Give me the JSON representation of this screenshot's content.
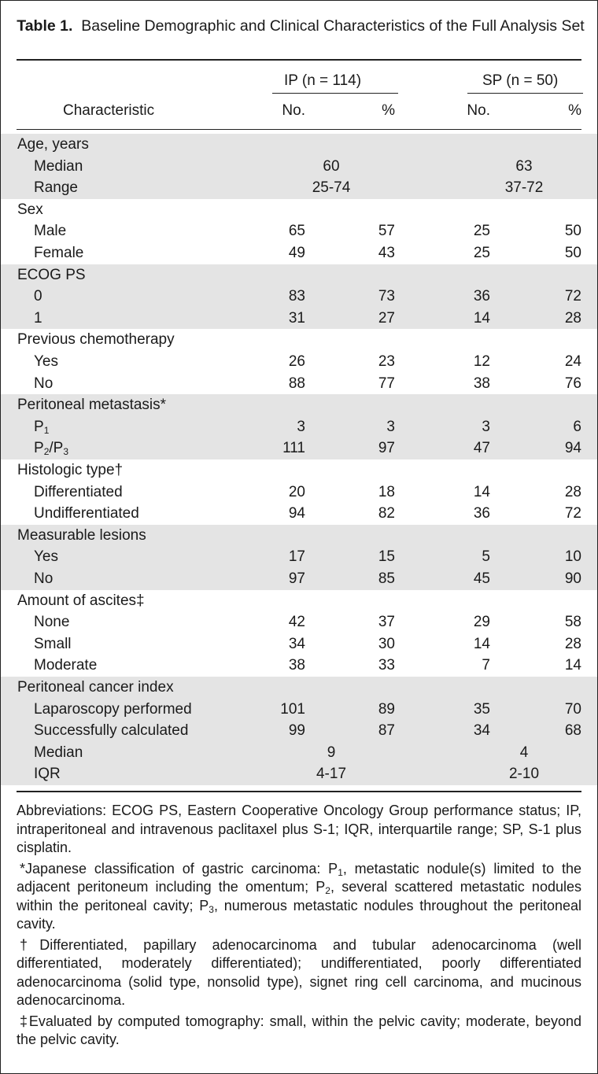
{
  "table": {
    "title_label": "Table 1.",
    "title_text": "Baseline Demographic and Clinical Characteristics of the Full Analysis Set",
    "col_characteristic": "Characteristic",
    "group_ip": "IP (n = 114)",
    "group_sp": "SP (n = 50)",
    "col_no": "No.",
    "col_pct": "%"
  },
  "sections": [
    {
      "header": "Age, years",
      "shade": true,
      "rows": [
        {
          "label": "Median",
          "span_ip": "60",
          "span_sp": "63"
        },
        {
          "label": "Range",
          "span_ip": "25-74",
          "span_sp": "37-72"
        }
      ]
    },
    {
      "header": "Sex",
      "shade": false,
      "rows": [
        {
          "label": "Male",
          "ip_no": "65",
          "ip_pct": "57",
          "sp_no": "25",
          "sp_pct": "50"
        },
        {
          "label": "Female",
          "ip_no": "49",
          "ip_pct": "43",
          "sp_no": "25",
          "sp_pct": "50"
        }
      ]
    },
    {
      "header": "ECOG PS",
      "shade": true,
      "rows": [
        {
          "label": "0",
          "ip_no": "83",
          "ip_pct": "73",
          "sp_no": "36",
          "sp_pct": "72"
        },
        {
          "label": "1",
          "ip_no": "31",
          "ip_pct": "27",
          "sp_no": "14",
          "sp_pct": "28"
        }
      ]
    },
    {
      "header": "Previous chemotherapy",
      "shade": false,
      "rows": [
        {
          "label": "Yes",
          "ip_no": "26",
          "ip_pct": "23",
          "sp_no": "12",
          "sp_pct": "24"
        },
        {
          "label": "No",
          "ip_no": "88",
          "ip_pct": "77",
          "sp_no": "38",
          "sp_pct": "76"
        }
      ]
    },
    {
      "header": "Peritoneal metastasis*",
      "shade": true,
      "rows": [
        {
          "label": "P1",
          "label_html": "P<sub>1</sub>",
          "ip_no": "3",
          "ip_pct": "3",
          "sp_no": "3",
          "sp_pct": "6"
        },
        {
          "label": "P2/P3",
          "label_html": "P<sub>2</sub>/P<sub>3</sub>",
          "ip_no": "111",
          "ip_pct": "97",
          "sp_no": "47",
          "sp_pct": "94"
        }
      ]
    },
    {
      "header": "Histologic type†",
      "shade": false,
      "rows": [
        {
          "label": "Differentiated",
          "ip_no": "20",
          "ip_pct": "18",
          "sp_no": "14",
          "sp_pct": "28"
        },
        {
          "label": "Undifferentiated",
          "ip_no": "94",
          "ip_pct": "82",
          "sp_no": "36",
          "sp_pct": "72"
        }
      ]
    },
    {
      "header": "Measurable lesions",
      "shade": true,
      "rows": [
        {
          "label": "Yes",
          "ip_no": "17",
          "ip_pct": "15",
          "sp_no": "5",
          "sp_pct": "10"
        },
        {
          "label": "No",
          "ip_no": "97",
          "ip_pct": "85",
          "sp_no": "45",
          "sp_pct": "90"
        }
      ]
    },
    {
      "header": "Amount of ascites‡",
      "shade": false,
      "rows": [
        {
          "label": "None",
          "ip_no": "42",
          "ip_pct": "37",
          "sp_no": "29",
          "sp_pct": "58"
        },
        {
          "label": "Small",
          "ip_no": "34",
          "ip_pct": "30",
          "sp_no": "14",
          "sp_pct": "28"
        },
        {
          "label": "Moderate",
          "ip_no": "38",
          "ip_pct": "33",
          "sp_no": "7",
          "sp_pct": "14"
        }
      ]
    },
    {
      "header": "Peritoneal cancer index",
      "shade": true,
      "rows": [
        {
          "label": "Laparoscopy performed",
          "ip_no": "101",
          "ip_pct": "89",
          "sp_no": "35",
          "sp_pct": "70"
        },
        {
          "label": "Successfully calculated",
          "ip_no": "99",
          "ip_pct": "87",
          "sp_no": "34",
          "sp_pct": "68"
        },
        {
          "label": "Median",
          "span_ip": "9",
          "span_sp": "4"
        },
        {
          "label": "IQR",
          "span_ip": "4-17",
          "span_sp": "2-10"
        }
      ]
    }
  ],
  "footnotes": {
    "abbreviations": "Abbreviations: ECOG PS, Eastern Cooperative Oncology Group performance status; IP, intraperitoneal and intravenous paclitaxel plus S-1; IQR, interquartile range; SP, S-1 plus cisplatin.",
    "star": "*Japanese classification of gastric carcinoma: P1, metastatic nodule(s) limited to the adjacent peritoneum including the omentum; P2, several scattered metastatic nodules within the peritoneal cavity; P3, numerous metastatic nodules throughout the peritoneal cavity.",
    "dagger": "†Differentiated, papillary adenocarcinoma and tubular adenocarcinoma (well differentiated, moderately differentiated); undifferentiated, poorly differentiated adenocarcinoma (solid type, nonsolid type), signet ring cell carcinoma, and mucinous adenocarcinoma.",
    "ddagger": "‡Evaluated by computed tomography: small, within the pelvic cavity; moderate, beyond the pelvic cavity."
  }
}
